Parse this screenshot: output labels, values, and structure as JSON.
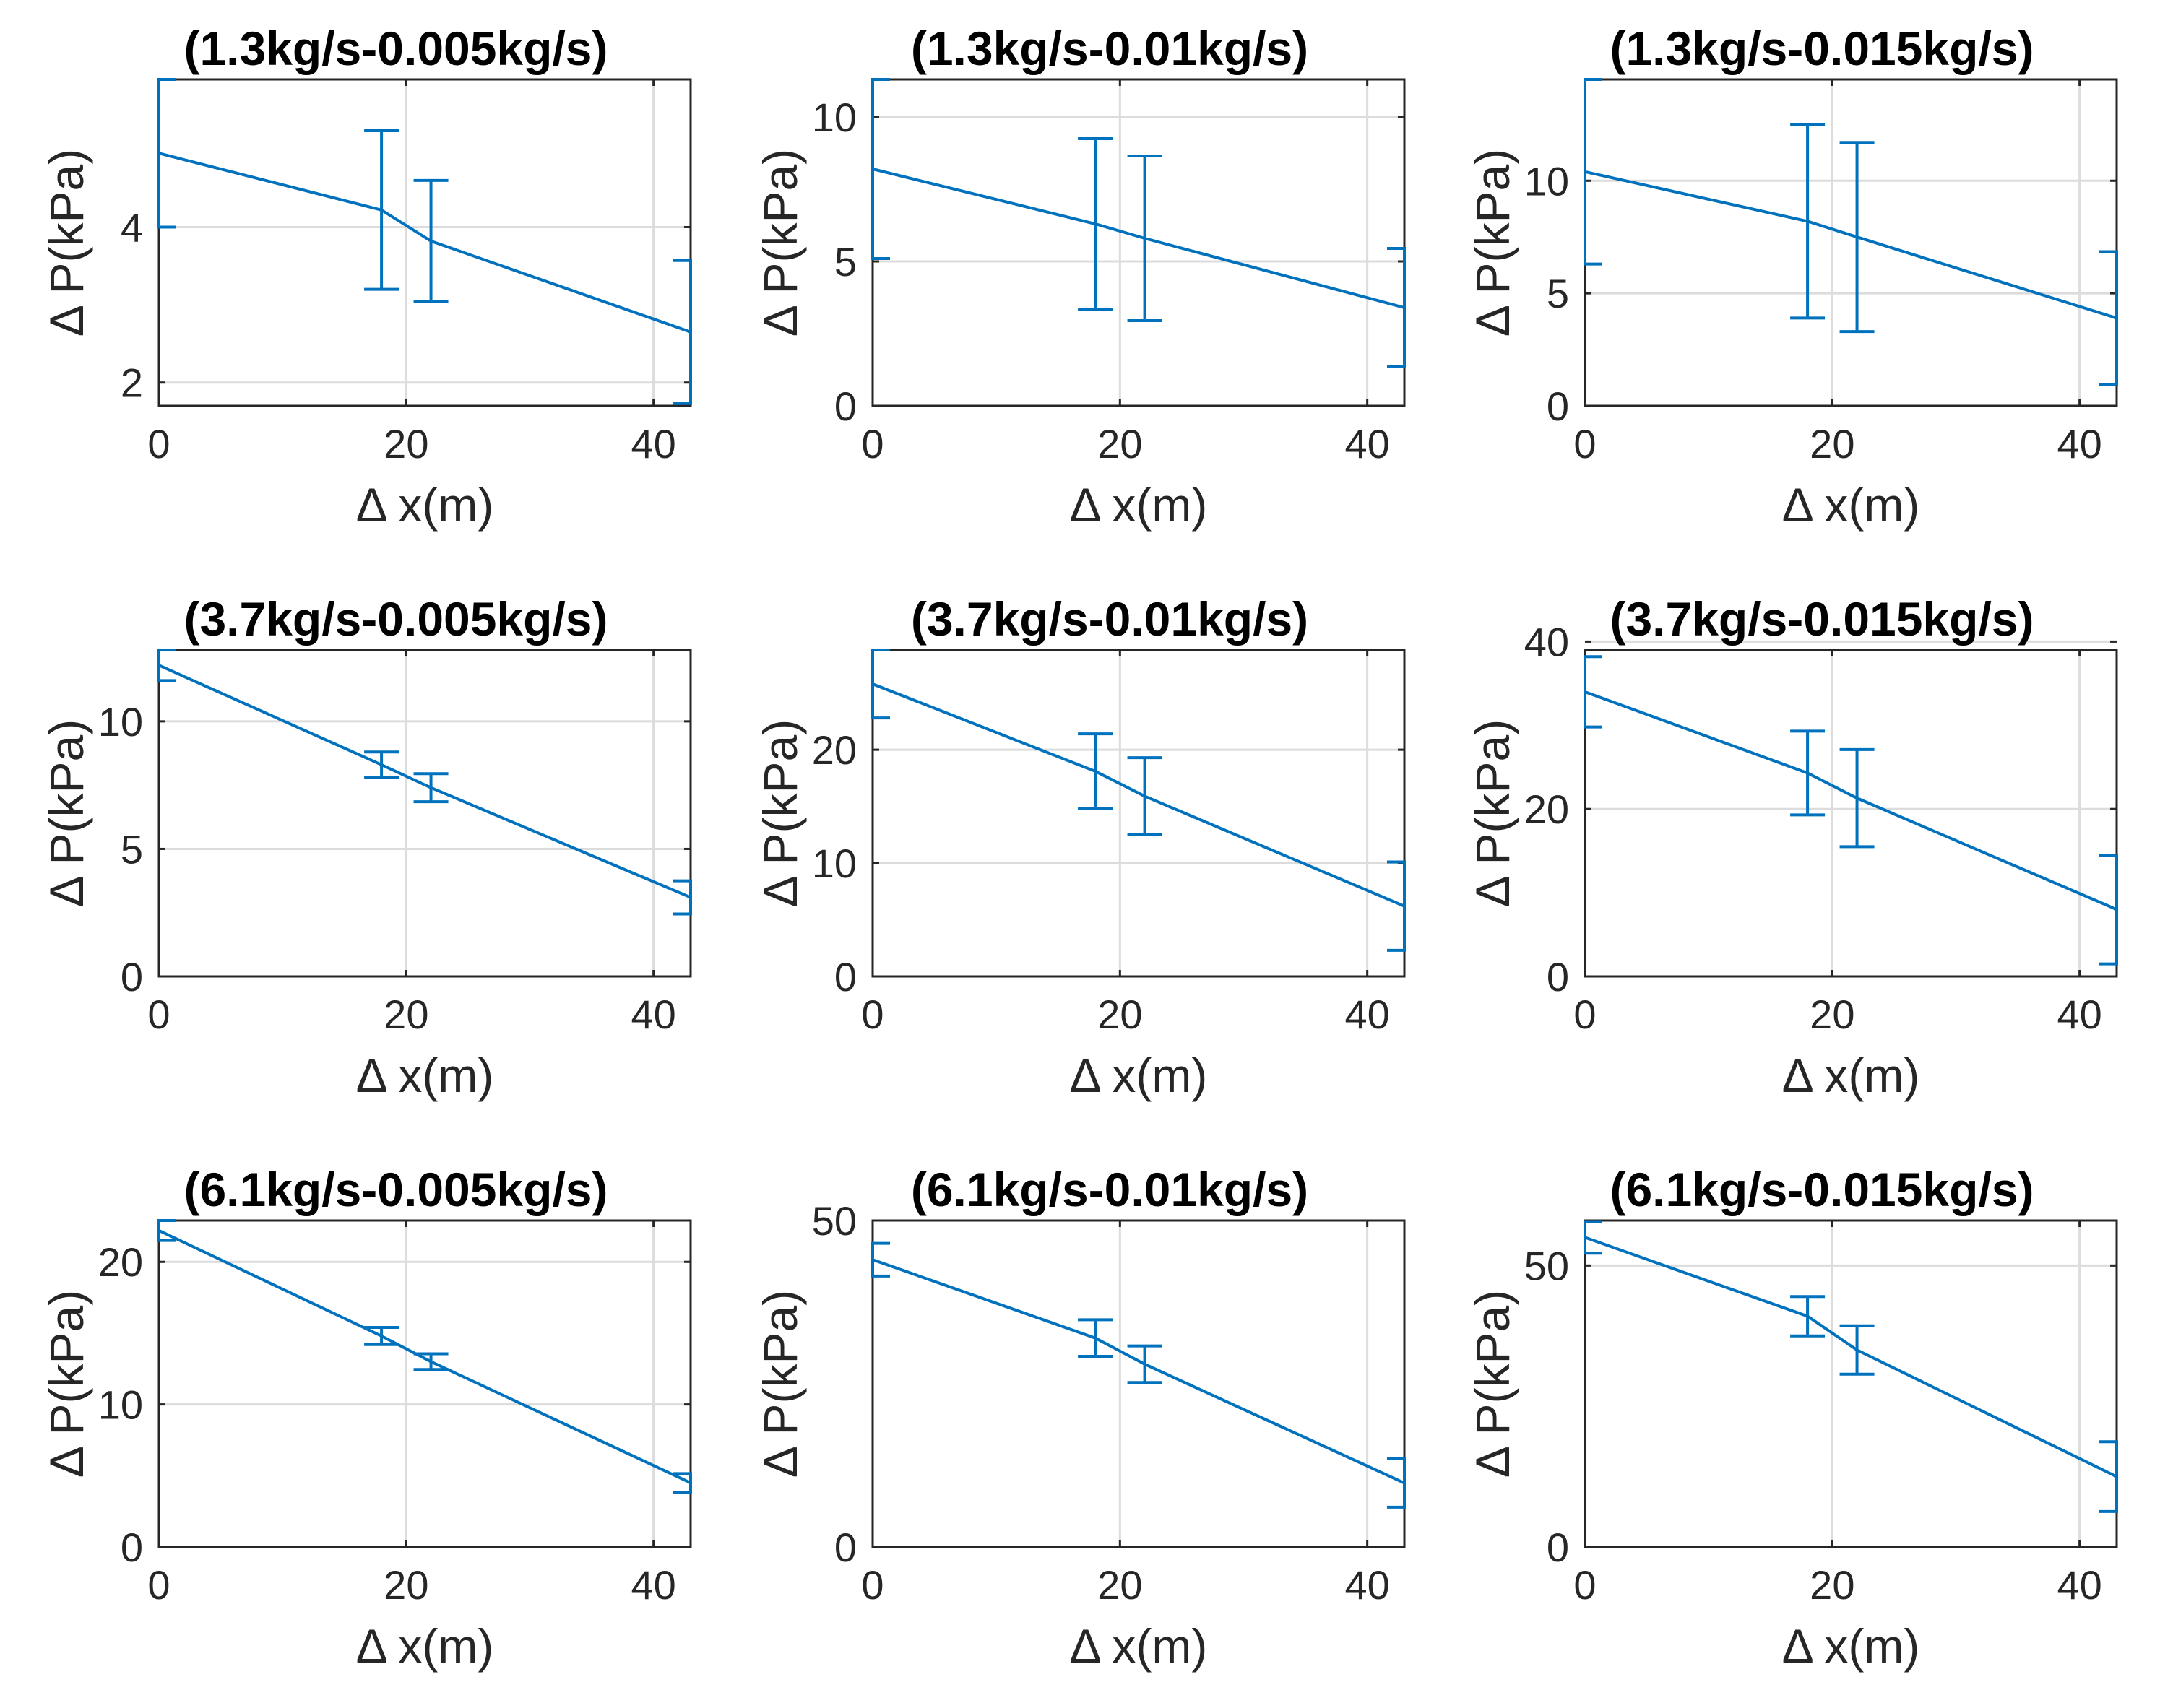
{
  "colors": {
    "series": "#0072BD",
    "axis": "#262626",
    "grid": "#dcdcdc"
  },
  "chart_data": [
    {
      "type": "line",
      "title": "(1.3kg/s-0.005kg/s)",
      "xlabel": "Δ x(m)",
      "ylabel": "Δ P(kPa)",
      "x": [
        0,
        18,
        22,
        43
      ],
      "y": [
        4.95,
        4.22,
        3.82,
        2.65
      ],
      "err": [
        0.95,
        1.02,
        0.78,
        0.92
      ],
      "xlim": [
        0,
        43
      ],
      "ylim": [
        1.7,
        5.9
      ],
      "xticks": [
        0,
        20,
        40
      ],
      "yticks": [
        2,
        4
      ],
      "grid": true
    },
    {
      "type": "line",
      "title": "(1.3kg/s-0.01kg/s)",
      "xlabel": "Δ x(m)",
      "ylabel": "Δ P(kPa)",
      "x": [
        0,
        18,
        22,
        43
      ],
      "y": [
        8.2,
        6.3,
        5.8,
        3.4
      ],
      "err": [
        3.1,
        2.95,
        2.85,
        2.05
      ],
      "xlim": [
        0,
        43
      ],
      "ylim": [
        0,
        11.3
      ],
      "xticks": [
        0,
        20,
        40
      ],
      "yticks": [
        0,
        5,
        10
      ],
      "grid": true
    },
    {
      "type": "line",
      "title": "(1.3kg/s-0.015kg/s)",
      "xlabel": "Δ x(m)",
      "ylabel": "Δ P(kPa)",
      "x": [
        0,
        18,
        22,
        43
      ],
      "y": [
        10.4,
        8.2,
        7.5,
        3.9
      ],
      "err": [
        4.1,
        4.3,
        4.2,
        2.95
      ],
      "xlim": [
        0,
        43
      ],
      "ylim": [
        0,
        14.5
      ],
      "xticks": [
        0,
        20,
        40
      ],
      "yticks": [
        0,
        5,
        10
      ],
      "grid": true
    },
    {
      "type": "line",
      "title": "(3.7kg/s-0.005kg/s)",
      "xlabel": "Δ x(m)",
      "ylabel": "Δ P(kPa)",
      "x": [
        0,
        18,
        22,
        43
      ],
      "y": [
        12.2,
        8.3,
        7.4,
        3.1
      ],
      "err": [
        0.6,
        0.5,
        0.55,
        0.65
      ],
      "xlim": [
        0,
        43
      ],
      "ylim": [
        0,
        12.8
      ],
      "xticks": [
        0,
        20,
        40
      ],
      "yticks": [
        0,
        5,
        10
      ],
      "grid": true
    },
    {
      "type": "line",
      "title": "(3.7kg/s-0.01kg/s)",
      "xlabel": "Δ x(m)",
      "ylabel": "Δ P(kPa)",
      "x": [
        0,
        18,
        22,
        43
      ],
      "y": [
        25.8,
        18.1,
        15.9,
        6.2
      ],
      "err": [
        3.0,
        3.3,
        3.4,
        3.9
      ],
      "xlim": [
        0,
        43
      ],
      "ylim": [
        0,
        28.8
      ],
      "xticks": [
        0,
        20,
        40
      ],
      "yticks": [
        0,
        10,
        20
      ],
      "grid": true
    },
    {
      "type": "line",
      "title": "(3.7kg/s-0.015kg/s)",
      "xlabel": "Δ x(m)",
      "ylabel": "Δ P(kPa)",
      "x": [
        0,
        18,
        22,
        43
      ],
      "y": [
        34.0,
        24.3,
        21.3,
        8.0
      ],
      "err": [
        4.2,
        5.0,
        5.8,
        6.5
      ],
      "xlim": [
        0,
        43
      ],
      "ylim": [
        0,
        39.0
      ],
      "xticks": [
        0,
        20,
        40
      ],
      "yticks": [
        0,
        20,
        40
      ],
      "grid": true
    },
    {
      "type": "line",
      "title": "(6.1kg/s-0.005kg/s)",
      "xlabel": "Δ x(m)",
      "ylabel": "Δ P(kPa)",
      "x": [
        0,
        18,
        22,
        43
      ],
      "y": [
        22.2,
        14.8,
        13.0,
        4.5
      ],
      "err": [
        0.7,
        0.6,
        0.55,
        0.65
      ],
      "xlim": [
        0,
        43
      ],
      "ylim": [
        0,
        22.9
      ],
      "xticks": [
        0,
        20,
        40
      ],
      "yticks": [
        0,
        10,
        20
      ],
      "grid": true
    },
    {
      "type": "line",
      "title": "(6.1kg/s-0.01kg/s)",
      "xlabel": "Δ x(m)",
      "ylabel": "Δ P(kPa)",
      "x": [
        0,
        18,
        22,
        43
      ],
      "y": [
        44.0,
        32.0,
        28.0,
        9.8
      ],
      "err": [
        2.5,
        2.8,
        2.8,
        3.7
      ],
      "xlim": [
        0,
        43
      ],
      "ylim": [
        0,
        50.0
      ],
      "xticks": [
        0,
        20,
        40
      ],
      "yticks": [
        0,
        50
      ],
      "grid": true
    },
    {
      "type": "line",
      "title": "(6.1kg/s-0.015kg/s)",
      "xlabel": "Δ x(m)",
      "ylabel": "Δ P(kPa)",
      "x": [
        0,
        18,
        22,
        43
      ],
      "y": [
        55.0,
        41.0,
        35.0,
        12.5
      ],
      "err": [
        2.8,
        3.5,
        4.3,
        6.2
      ],
      "xlim": [
        0,
        43
      ],
      "ylim": [
        0,
        58.0
      ],
      "xticks": [
        0,
        20,
        40
      ],
      "yticks": [
        0,
        50
      ],
      "grid": true
    }
  ]
}
